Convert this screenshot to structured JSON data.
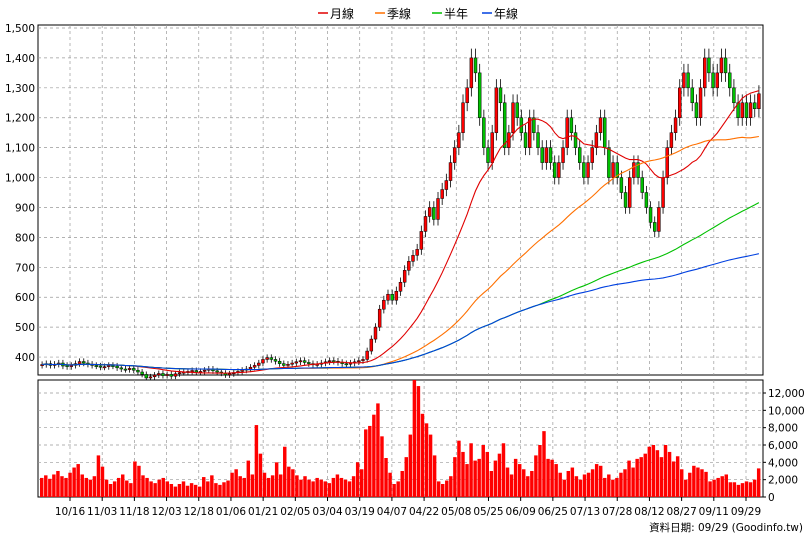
{
  "legend": [
    {
      "label": "月線",
      "color": "#e00000"
    },
    {
      "label": "季線",
      "color": "#ff7000"
    },
    {
      "label": "半年",
      "color": "#00c000"
    },
    {
      "label": "年線",
      "color": "#0040e0"
    }
  ],
  "footer": "資料日期: 09/29 (Goodinfo.tw)",
  "chart_data": [
    {
      "type": "candlestick",
      "title": "",
      "ylim": [
        340,
        1510
      ],
      "y_ticks": [
        "1,500",
        "1,400",
        "1,300",
        "1,200",
        "1,100",
        "1,000",
        "900",
        "800",
        "700",
        "600",
        "500",
        "400"
      ],
      "y_tick_values": [
        1500,
        1400,
        1300,
        1200,
        1100,
        1000,
        900,
        800,
        700,
        600,
        500,
        400
      ],
      "x_tick_labels": [
        "10/16",
        "11/03",
        "11/18",
        "12/03",
        "12/18",
        "01/06",
        "01/21",
        "02/05",
        "03/04",
        "03/19",
        "04/07",
        "04/22",
        "05/08",
        "05/25",
        "06/09",
        "06/25",
        "07/13",
        "07/28",
        "08/12",
        "08/27",
        "09/11",
        "09/29"
      ],
      "grid": true,
      "legend_position": "top-center",
      "candles_close": [
        375,
        378,
        372,
        376,
        380,
        370,
        368,
        372,
        378,
        385,
        380,
        376,
        372,
        370,
        366,
        368,
        372,
        370,
        364,
        360,
        358,
        362,
        356,
        350,
        342,
        330,
        334,
        340,
        345,
        338,
        342,
        336,
        344,
        348,
        350,
        352,
        355,
        350,
        352,
        356,
        360,
        354,
        350,
        346,
        340,
        344,
        348,
        352,
        356,
        360,
        366,
        372,
        380,
        392,
        398,
        392,
        386,
        378,
        372,
        376,
        380,
        384,
        388,
        382,
        378,
        374,
        376,
        380,
        384,
        388,
        386,
        382,
        378,
        376,
        380,
        384,
        388,
        392,
        420,
        460,
        500,
        560,
        590,
        610,
        590,
        620,
        650,
        690,
        720,
        740,
        760,
        820,
        870,
        900,
        860,
        930,
        960,
        990,
        1050,
        1100,
        1150,
        1250,
        1300,
        1400,
        1350,
        1200,
        1100,
        1050,
        1150,
        1300,
        1250,
        1100,
        1150,
        1250,
        1200,
        1150,
        1100,
        1200,
        1150,
        1100,
        1050,
        1100,
        1050,
        1000,
        1050,
        1100,
        1200,
        1150,
        1100,
        1050,
        1000,
        1050,
        1100,
        1150,
        1200,
        1100,
        1000,
        1050,
        1000,
        950,
        900,
        1000,
        1050,
        1000,
        950,
        900,
        850,
        820,
        900,
        1000,
        1100,
        1150,
        1200,
        1300,
        1350,
        1300,
        1250,
        1200,
        1300,
        1400,
        1350,
        1300,
        1350,
        1400,
        1350,
        1300,
        1250,
        1200,
        1250,
        1200,
        1250,
        1230,
        1280
      ],
      "candles_open": [
        372,
        375,
        378,
        372,
        376,
        380,
        372,
        368,
        372,
        378,
        385,
        380,
        376,
        372,
        370,
        366,
        368,
        372,
        370,
        364,
        360,
        358,
        362,
        356,
        350,
        342,
        330,
        334,
        340,
        345,
        338,
        342,
        336,
        344,
        348,
        350,
        352,
        355,
        350,
        352,
        356,
        360,
        354,
        350,
        346,
        340,
        344,
        348,
        352,
        356,
        360,
        366,
        372,
        380,
        392,
        398,
        392,
        386,
        378,
        372,
        376,
        380,
        384,
        388,
        382,
        378,
        374,
        376,
        380,
        384,
        388,
        386,
        382,
        378,
        376,
        380,
        384,
        388,
        392,
        420,
        460,
        500,
        560,
        590,
        610,
        590,
        620,
        650,
        690,
        720,
        740,
        760,
        820,
        870,
        900,
        860,
        930,
        960,
        990,
        1050,
        1100,
        1150,
        1250,
        1300,
        1400,
        1350,
        1200,
        1100,
        1050,
        1150,
        1300,
        1250,
        1100,
        1150,
        1250,
        1200,
        1150,
        1100,
        1200,
        1150,
        1100,
        1050,
        1100,
        1050,
        1000,
        1050,
        1100,
        1200,
        1150,
        1100,
        1050,
        1000,
        1050,
        1100,
        1150,
        1200,
        1100,
        1000,
        1050,
        1000,
        950,
        900,
        1000,
        1050,
        1000,
        950,
        900,
        850,
        820,
        900,
        1000,
        1100,
        1150,
        1200,
        1300,
        1350,
        1300,
        1250,
        1200,
        1300,
        1400,
        1350,
        1300,
        1350,
        1400,
        1350,
        1300,
        1250,
        1200,
        1250,
        1200,
        1250,
        1230
      ],
      "series": [
        {
          "values_ref": "ma20",
          "color": "#e00000"
        },
        {
          "values_ref": "ma60",
          "color": "#ff7000"
        },
        {
          "values_ref": "ma120",
          "color": "#00c000"
        },
        {
          "values_ref": "ma240",
          "color": "#0040e0"
        }
      ]
    },
    {
      "type": "bar",
      "title": "",
      "ylim": [
        0,
        13500
      ],
      "y_ticks": [
        "12,000",
        "10,000",
        "8,000",
        "6,000",
        "4,000",
        "2,000",
        "0"
      ],
      "y_tick_values": [
        12000,
        10000,
        8000,
        6000,
        4000,
        2000,
        0
      ],
      "volume_color": "#ff0000",
      "values": [
        2200,
        2500,
        2100,
        2600,
        3000,
        2400,
        2200,
        2800,
        3400,
        3800,
        2600,
        2200,
        2000,
        2400,
        4800,
        3500,
        2000,
        1500,
        1800,
        2200,
        2600,
        1900,
        1600,
        4100,
        3600,
        2500,
        2200,
        1800,
        1600,
        2000,
        2200,
        1800,
        1500,
        1200,
        1500,
        1800,
        1300,
        1600,
        1400,
        1200,
        2300,
        1800,
        2500,
        1600,
        1400,
        1700,
        1900,
        2800,
        3200,
        2400,
        2200,
        4200,
        2600,
        8300,
        5000,
        2800,
        2200,
        2500,
        4000,
        2600,
        5800,
        3500,
        3200,
        2500,
        2000,
        2400,
        2000,
        1800,
        2200,
        2000,
        1800,
        1600,
        2200,
        2600,
        2200,
        2000,
        1800,
        2400,
        4000,
        3200,
        7800,
        8200,
        9500,
        10800,
        7000,
        4500,
        2800,
        1500,
        1800,
        3000,
        4600,
        7200,
        13500,
        12800,
        9600,
        8500,
        7200,
        4800,
        1800,
        1500,
        1900,
        2400,
        4600,
        6500,
        5200,
        3800,
        6200,
        4200,
        4400,
        6000,
        5200,
        3000,
        4200,
        5000,
        6200,
        3400,
        2600,
        4400,
        3800,
        3200,
        2400,
        3000,
        4800,
        6000,
        7600,
        4400,
        4300,
        3800,
        2800,
        2000,
        3000,
        3400,
        2400,
        2000,
        2600,
        2800,
        3200,
        3800,
        3600,
        2200,
        2600,
        2000,
        2200,
        2800,
        3200,
        4200,
        3400,
        4400,
        4600,
        5000,
        5800,
        6000,
        5400,
        4600,
        6000,
        5200,
        4100,
        4700,
        3200,
        2000,
        2800,
        3600,
        3400,
        3200,
        2900,
        1800,
        2000,
        2200,
        2400,
        2600,
        1700,
        1700,
        1400,
        1600,
        1800,
        1700,
        2000,
        3300
      ]
    }
  ]
}
